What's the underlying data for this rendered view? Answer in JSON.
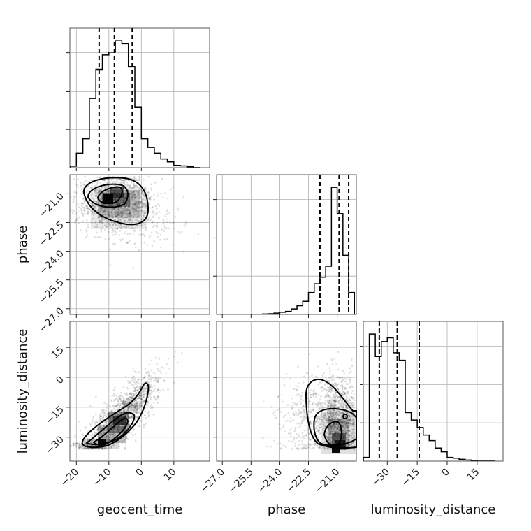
{
  "chart_data": {
    "type": "corner",
    "parameters": [
      "geocent_time",
      "phase",
      "luminosity_distance"
    ],
    "axes": {
      "geocent_time": {
        "label": "geocent_time",
        "range": [
          -22,
          21
        ],
        "ticks": [
          -20,
          -10,
          0,
          10
        ],
        "tick_labels": [
          "−20",
          "−10",
          "0",
          "10"
        ]
      },
      "phase": {
        "label": "phase",
        "range": [
          -27.3,
          -20.0
        ],
        "ticks": [
          -27.0,
          -25.5,
          -24.0,
          -22.5,
          -21.0
        ],
        "tick_labels": [
          "−27.0",
          "−25.5",
          "−24.0",
          "−22.5",
          "−21.0"
        ]
      },
      "luminosity_distance": {
        "label": "luminosity_distance",
        "range": [
          -42,
          28
        ],
        "ticks": [
          -30,
          -15,
          0,
          15
        ],
        "tick_labels": [
          "−30",
          "−15",
          "0",
          "15"
        ]
      }
    },
    "hist_geocent_time": {
      "bin_edges": [
        -22,
        -20,
        -18,
        -16,
        -14,
        -12,
        -10,
        -8,
        -6,
        -4,
        -2,
        0,
        2,
        4,
        6,
        8,
        10,
        12,
        14,
        16,
        18
      ],
      "counts": [
        0.5,
        5,
        10,
        24,
        34,
        39,
        40,
        44,
        43,
        35,
        21,
        10,
        7,
        5,
        3,
        2,
        0.8,
        0.6,
        0.3,
        0
      ],
      "quantiles": [
        -13,
        -8.3,
        -2.8
      ]
    },
    "hist_phase": {
      "bin_edges": [
        -27.3,
        -27.0,
        -26.7,
        -26.4,
        -26.1,
        -25.8,
        -25.5,
        -25.2,
        -24.9,
        -24.6,
        -24.3,
        -24.0,
        -23.7,
        -23.4,
        -23.1,
        -22.8,
        -22.5,
        -22.2,
        -21.9,
        -21.6,
        -21.3,
        -21.0,
        -20.7,
        -20.4,
        -20.1
      ],
      "counts": [
        0,
        0,
        0,
        0,
        0,
        0,
        0,
        0,
        0.2,
        0.3,
        0.6,
        1,
        1.4,
        2.5,
        4,
        6,
        10,
        14,
        17,
        22,
        58,
        46,
        27,
        10
      ],
      "quantiles": [
        -21.9,
        -20.9,
        -20.4
      ]
    },
    "hist_luminosity_distance": {
      "bin_edges": [
        -42,
        -39,
        -36,
        -33,
        -30,
        -27,
        -24,
        -21,
        -18,
        -15,
        -12,
        -9,
        -6,
        -3,
        0,
        3,
        6,
        9,
        12,
        15,
        18,
        21,
        24
      ],
      "counts": [
        1,
        34,
        28,
        32,
        33,
        29,
        27,
        13,
        11,
        9,
        7,
        5.5,
        3.5,
        2.5,
        1,
        0.8,
        0.5,
        0.3,
        0.2,
        0,
        0,
        0
      ],
      "quantiles": [
        -34,
        -25,
        -14
      ]
    },
    "scatter_regions": {
      "geocent_time_vs_phase": {
        "mean": [
          -8,
          -21.5
        ],
        "sd": [
          5.5,
          0.8
        ]
      },
      "geocent_time_vs_luminosity_distance": {
        "mean": [
          -7,
          -21
        ],
        "slope": 1.5,
        "sd_x": 6,
        "sd_perp": 6
      },
      "phase_vs_luminosity_distance": {
        "mean": [
          -21.5,
          -21
        ],
        "sd": [
          0.9,
          11
        ]
      }
    }
  }
}
